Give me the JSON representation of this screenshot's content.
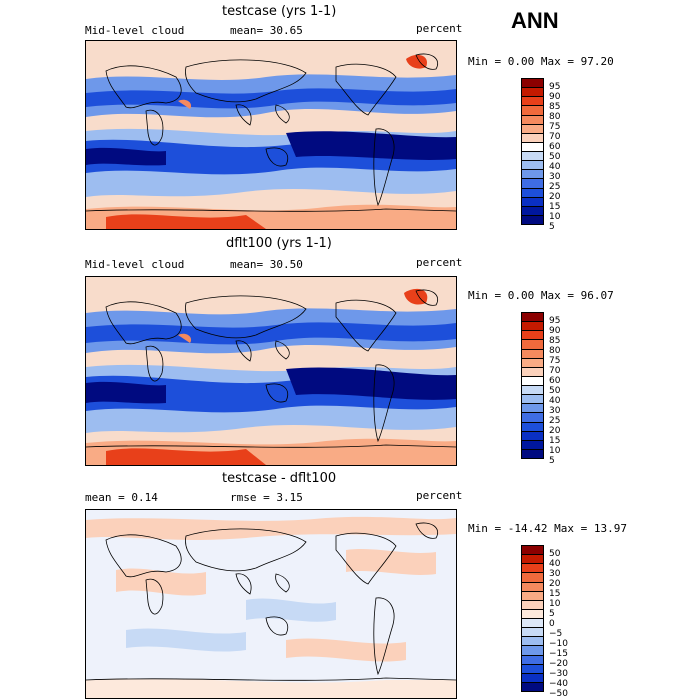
{
  "season": "ANN",
  "panels": [
    {
      "title": "testcase (yrs 1-1)",
      "left_label": "Mid-level cloud",
      "stat": "mean=  30.65",
      "units": "percent",
      "minmax": "Min =   0.00 Max =  97.20",
      "colorbar_labels": [
        "95",
        "90",
        "85",
        "80",
        "75",
        "70",
        "60",
        "50",
        "40",
        "30",
        "25",
        "20",
        "15",
        "10",
        "5"
      ],
      "colors": [
        "#8b0000",
        "#c41a00",
        "#e8401a",
        "#f06a3c",
        "#f58a5e",
        "#f9ab85",
        "#fbd1bb",
        "#ffffff",
        "#c7daf5",
        "#9dbdf0",
        "#6e98ea",
        "#3f6de4",
        "#1d4fda",
        "#0a30c4",
        "#00179e",
        "#000a80"
      ]
    },
    {
      "title": "dflt100 (yrs 1-1)",
      "left_label": "Mid-level cloud",
      "stat": "mean=  30.50",
      "units": "percent",
      "minmax": "Min =   0.00 Max =  96.07",
      "colorbar_labels": [
        "95",
        "90",
        "85",
        "80",
        "75",
        "70",
        "60",
        "50",
        "40",
        "30",
        "25",
        "20",
        "15",
        "10",
        "5"
      ],
      "colors": [
        "#8b0000",
        "#c41a00",
        "#e8401a",
        "#f06a3c",
        "#f58a5e",
        "#f9ab85",
        "#fbd1bb",
        "#ffffff",
        "#c7daf5",
        "#9dbdf0",
        "#6e98ea",
        "#3f6de4",
        "#1d4fda",
        "#0a30c4",
        "#00179e",
        "#000a80"
      ]
    },
    {
      "title": "testcase - dflt100",
      "left_label": "mean =   0.14",
      "stat": "rmse =   3.15",
      "units": "percent",
      "minmax": "Min = -14.42 Max =  13.97",
      "colorbar_labels": [
        "50",
        "40",
        "30",
        "20",
        "15",
        "10",
        "5",
        "0",
        "−5",
        "−10",
        "−15",
        "−20",
        "−30",
        "−40",
        "−50"
      ],
      "colors": [
        "#8b0000",
        "#c41a00",
        "#e8401a",
        "#f06a3c",
        "#f58a5e",
        "#f9ab85",
        "#fbd1bb",
        "#fde9dc",
        "#dde8f8",
        "#c7daf5",
        "#9dbdf0",
        "#6e98ea",
        "#3f6de4",
        "#1d4fda",
        "#0a30c4",
        "#000a80"
      ]
    }
  ]
}
